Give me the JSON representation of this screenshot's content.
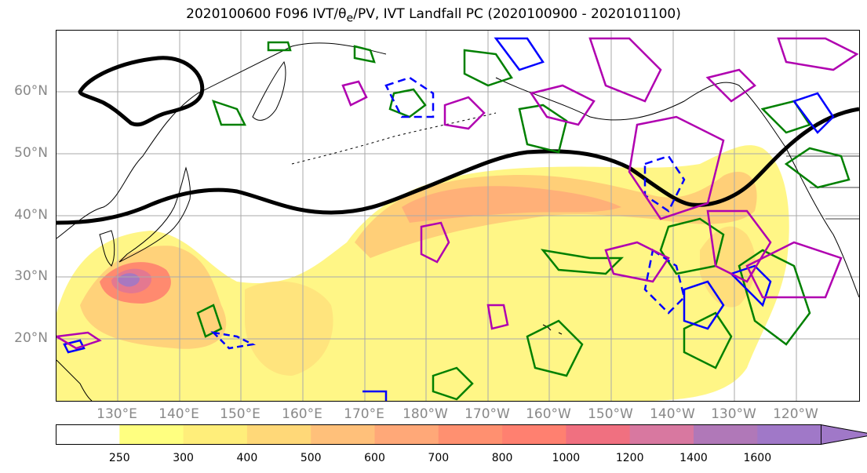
{
  "title": "2020100600 F096 IVT/θ",
  "title_sub": "e",
  "title_rest": "/PV, IVT Landfall PC (2020100900 - 2020101100)",
  "lat_labels": [
    "60°N",
    "50°N",
    "40°N",
    "30°N",
    "20°N"
  ],
  "lon_labels": [
    "130°E",
    "140°E",
    "150°E",
    "160°E",
    "170°E",
    "180°W",
    "170°W",
    "160°W",
    "150°W",
    "140°W",
    "130°W",
    "120°W"
  ],
  "colorbar": {
    "ticks": [
      "250",
      "300",
      "400",
      "500",
      "600",
      "700",
      "800",
      "1000",
      "1200",
      "1400",
      "1600"
    ],
    "colors": [
      "#ffffff",
      "#ffff80",
      "#ffee7a",
      "#ffd878",
      "#ffc07a",
      "#ffa878",
      "#ff9070",
      "#ff8070",
      "#f07080",
      "#d878a0",
      "#b078b8",
      "#a078c8"
    ]
  },
  "colors": {
    "contour_black": "#000000",
    "contour_green": "#008000",
    "contour_blue": "#0000ff",
    "contour_magenta": "#b000b0",
    "coastline": "#000000",
    "grid": "#aaaaaa"
  }
}
